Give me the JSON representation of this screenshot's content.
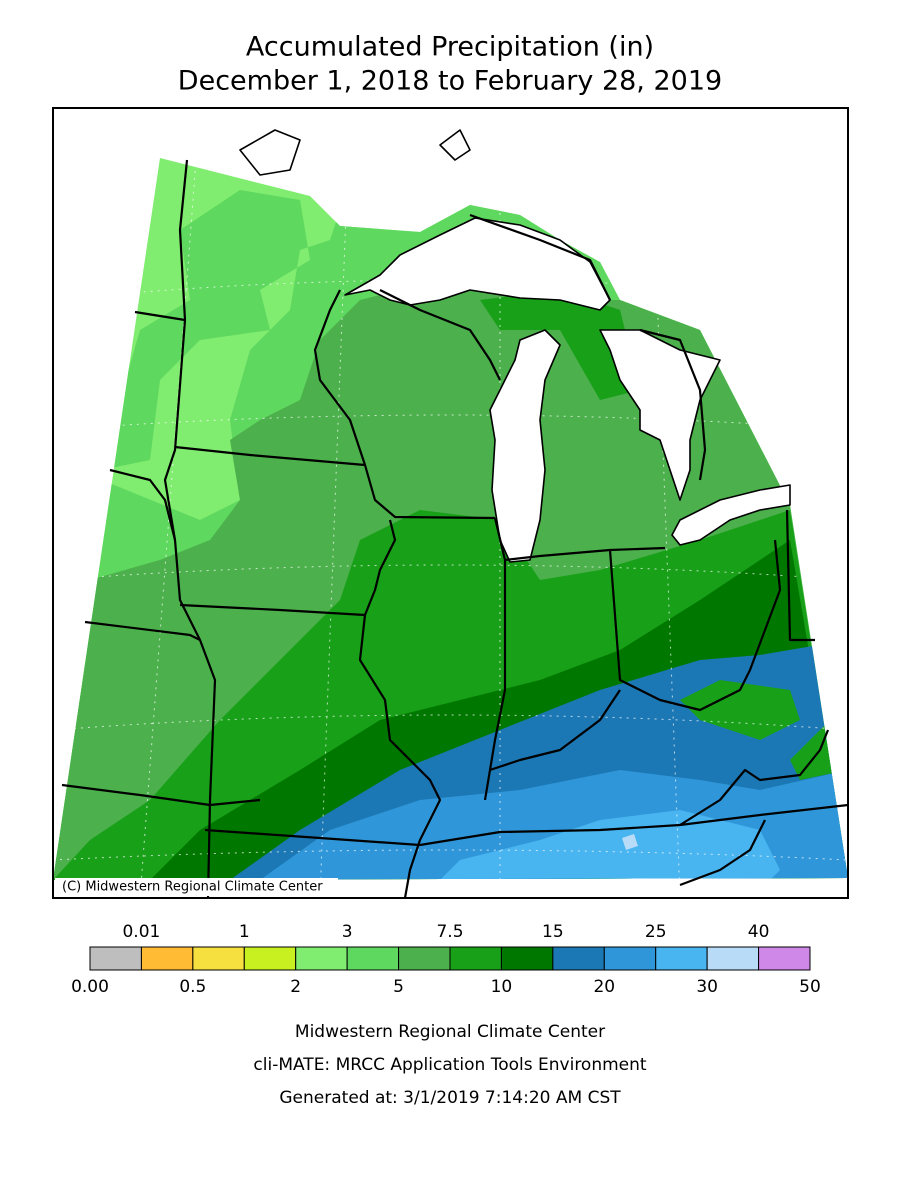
{
  "header": {
    "title": "Accumulated Precipitation (in)",
    "subtitle": "December 1, 2018 to February 28, 2019"
  },
  "map": {
    "credit": "(C) Midwestern Regional Climate Center"
  },
  "legend": {
    "boundaries": [
      "0.00",
      "0.01",
      "0.5",
      "1",
      "2",
      "3",
      "5",
      "7.5",
      "10",
      "15",
      "20",
      "25",
      "30",
      "40",
      "50"
    ],
    "colors": [
      "#bebebe",
      "#ffbb33",
      "#f5e040",
      "#c8f020",
      "#80ec70",
      "#5ed85e",
      "#4cb04c",
      "#18a018",
      "#007800",
      "#1c78b4",
      "#2f97d9",
      "#48b4f0",
      "#b8dcf8",
      "#d088e8"
    ]
  },
  "footer": {
    "lines": [
      "Midwestern Regional Climate Center",
      "cli-MATE: MRCC Application Tools Environment",
      "Generated at: 3/1/2019 7:14:20 AM CST"
    ]
  }
}
